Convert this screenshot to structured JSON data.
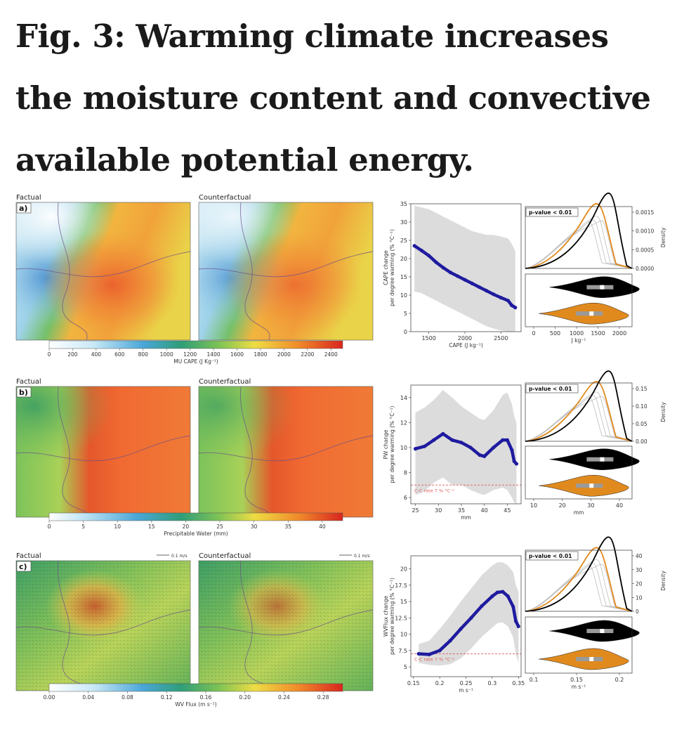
{
  "title": "Fig. 3: Warming climate increases the moisture content and convective available potential energy.",
  "panels": [
    {
      "letter": "a)",
      "left_title": "Factual",
      "right_title": "Counterfactual",
      "colorbar": {
        "label": "MU CAPE (J Kg⁻¹)",
        "ticks": [
          "0",
          "200",
          "400",
          "600",
          "800",
          "1000",
          "1200",
          "1400",
          "1600",
          "1800",
          "2000",
          "2200",
          "2400"
        ],
        "vmax": 2500
      },
      "line_plot": {
        "ylabel_1": "CAPE change",
        "ylabel_2": "per degree warming (% °C⁻¹)",
        "xlabel": "CAPE (J kg⁻¹)",
        "xticks": [
          1500,
          2000,
          2500
        ],
        "yticks": [
          0,
          5,
          10,
          15,
          20,
          25,
          30,
          35
        ],
        "xlim": [
          1250,
          2780
        ],
        "ylim": [
          0,
          35
        ],
        "cc_label": ""
      },
      "density_plot": {
        "pvalue": "p-value < 0.01",
        "xlabel": "J kg⁻¹",
        "xticks": [
          0,
          500,
          1000,
          1500,
          2000
        ],
        "yticks": [
          "0.0000",
          "0.0005",
          "0.0010",
          "0.0015"
        ],
        "ylabel": "Density"
      }
    },
    {
      "letter": "b)",
      "left_title": "Factual",
      "right_title": "Counterfactual",
      "colorbar": {
        "label": "Precipitable Water (mm)",
        "ticks": [
          "0",
          "5",
          "10",
          "15",
          "20",
          "25",
          "30",
          "35",
          "40"
        ],
        "vmax": 43
      },
      "line_plot": {
        "ylabel_1": "PW change",
        "ylabel_2": "per degree warming (% °C⁻¹)",
        "xlabel": "mm",
        "xticks": [
          25,
          30,
          35,
          40,
          45
        ],
        "yticks": [
          6,
          8,
          10,
          12,
          14
        ],
        "xlim": [
          24,
          48
        ],
        "ylim": [
          5.5,
          15
        ],
        "cc_label": "C-C rate 7 % °C⁻¹"
      },
      "density_plot": {
        "pvalue": "p-value < 0.01",
        "xlabel": "mm",
        "xticks": [
          10,
          20,
          30,
          40
        ],
        "yticks": [
          "0.00",
          "0.05",
          "0.10",
          "0.15"
        ],
        "ylabel": "Density"
      }
    },
    {
      "letter": "c)",
      "left_title": "Factual",
      "right_title": "Counterfactual",
      "quiver_key": "0.1 m/s",
      "colorbar": {
        "label": "WV Flux (m s⁻¹)",
        "ticks": [
          "0.00",
          "0.04",
          "0.08",
          "0.12",
          "0.16",
          "0.20",
          "0.24",
          "0.28"
        ],
        "vmax": 0.3
      },
      "line_plot": {
        "ylabel_1": "WVFlux change",
        "ylabel_2": "per degree warming (% °C⁻¹)",
        "xlabel": "m s⁻¹",
        "xticks": [
          0.15,
          0.2,
          0.25,
          0.3,
          0.35
        ],
        "yticks": [
          5.0,
          7.5,
          10.0,
          12.5,
          15.0,
          17.5,
          20.0
        ],
        "xlim": [
          0.145,
          0.355
        ],
        "ylim": [
          3.5,
          22
        ],
        "cc_label": "C-C rate 7 % °C⁻¹"
      },
      "density_plot": {
        "pvalue": "p-value < 0.01",
        "xlabel": "m s⁻¹",
        "xticks": [
          0.1,
          0.15,
          0.2
        ],
        "yticks": [
          "0",
          "10",
          "20",
          "30",
          "40"
        ],
        "ylabel": "Density"
      }
    }
  ],
  "chart_data": [
    {
      "type": "line",
      "panel": "a",
      "x": [
        1300,
        1400,
        1500,
        1600,
        1700,
        1800,
        1900,
        2000,
        2100,
        2200,
        2300,
        2400,
        2500,
        2600,
        2650,
        2700
      ],
      "y": [
        23.5,
        22.2,
        20.8,
        19.0,
        17.5,
        16.2,
        15.2,
        14.2,
        13.2,
        12.2,
        11.2,
        10.2,
        9.3,
        8.5,
        7.2,
        6.6
      ],
      "band_upper": [
        34.5,
        34.0,
        33.5,
        32.5,
        31.5,
        30.5,
        29.5,
        28.5,
        27.5,
        27.0,
        26.5,
        26.5,
        26.0,
        25.5,
        24.0,
        22.0
      ],
      "band_lower": [
        11.0,
        10.5,
        9.5,
        8.5,
        7.5,
        6.5,
        5.5,
        4.5,
        3.5,
        2.5,
        1.5,
        0.8,
        0.3,
        0.0,
        0.0,
        0.0
      ],
      "cc_rate": null
    },
    {
      "type": "line",
      "panel": "b",
      "x": [
        25,
        27,
        29,
        31,
        33,
        35,
        37,
        39,
        40,
        42,
        44,
        45,
        46,
        46.5,
        47
      ],
      "y": [
        9.9,
        10.1,
        10.6,
        11.1,
        10.6,
        10.4,
        10.0,
        9.4,
        9.3,
        10.0,
        10.6,
        10.6,
        9.8,
        8.9,
        8.7
      ],
      "band_upper": [
        12.8,
        13.2,
        13.8,
        14.6,
        14.0,
        13.3,
        12.8,
        12.3,
        12.2,
        13.0,
        14.2,
        14.4,
        13.5,
        12.5,
        12.0
      ],
      "band_lower": [
        6.2,
        6.5,
        7.2,
        7.6,
        7.0,
        7.0,
        6.6,
        6.3,
        6.2,
        6.6,
        6.8,
        6.6,
        6.0,
        5.6,
        5.5
      ],
      "cc_rate": 7
    },
    {
      "type": "line",
      "panel": "c",
      "x": [
        0.16,
        0.18,
        0.2,
        0.22,
        0.24,
        0.26,
        0.28,
        0.3,
        0.31,
        0.32,
        0.33,
        0.34,
        0.345,
        0.35
      ],
      "y": [
        7.0,
        6.9,
        7.5,
        9.0,
        10.8,
        12.5,
        14.3,
        15.8,
        16.4,
        16.5,
        15.8,
        14.2,
        12.0,
        11.2
      ],
      "band_upper": [
        8.5,
        9.0,
        10.8,
        12.8,
        15.0,
        17.0,
        19.0,
        20.5,
        21.0,
        21.0,
        20.5,
        19.5,
        17.5,
        16.5
      ],
      "band_lower": [
        5.6,
        5.3,
        5.2,
        5.4,
        6.3,
        7.8,
        9.6,
        11.0,
        11.7,
        11.8,
        11.2,
        9.5,
        7.0,
        5.5
      ],
      "cc_rate": 7
    }
  ],
  "colors": {
    "series": "#1f1b9f",
    "band": "#dcdcdc",
    "factual": "#000000",
    "counterfactual": "#e08a1e",
    "cc_line": "#e05a5a"
  }
}
